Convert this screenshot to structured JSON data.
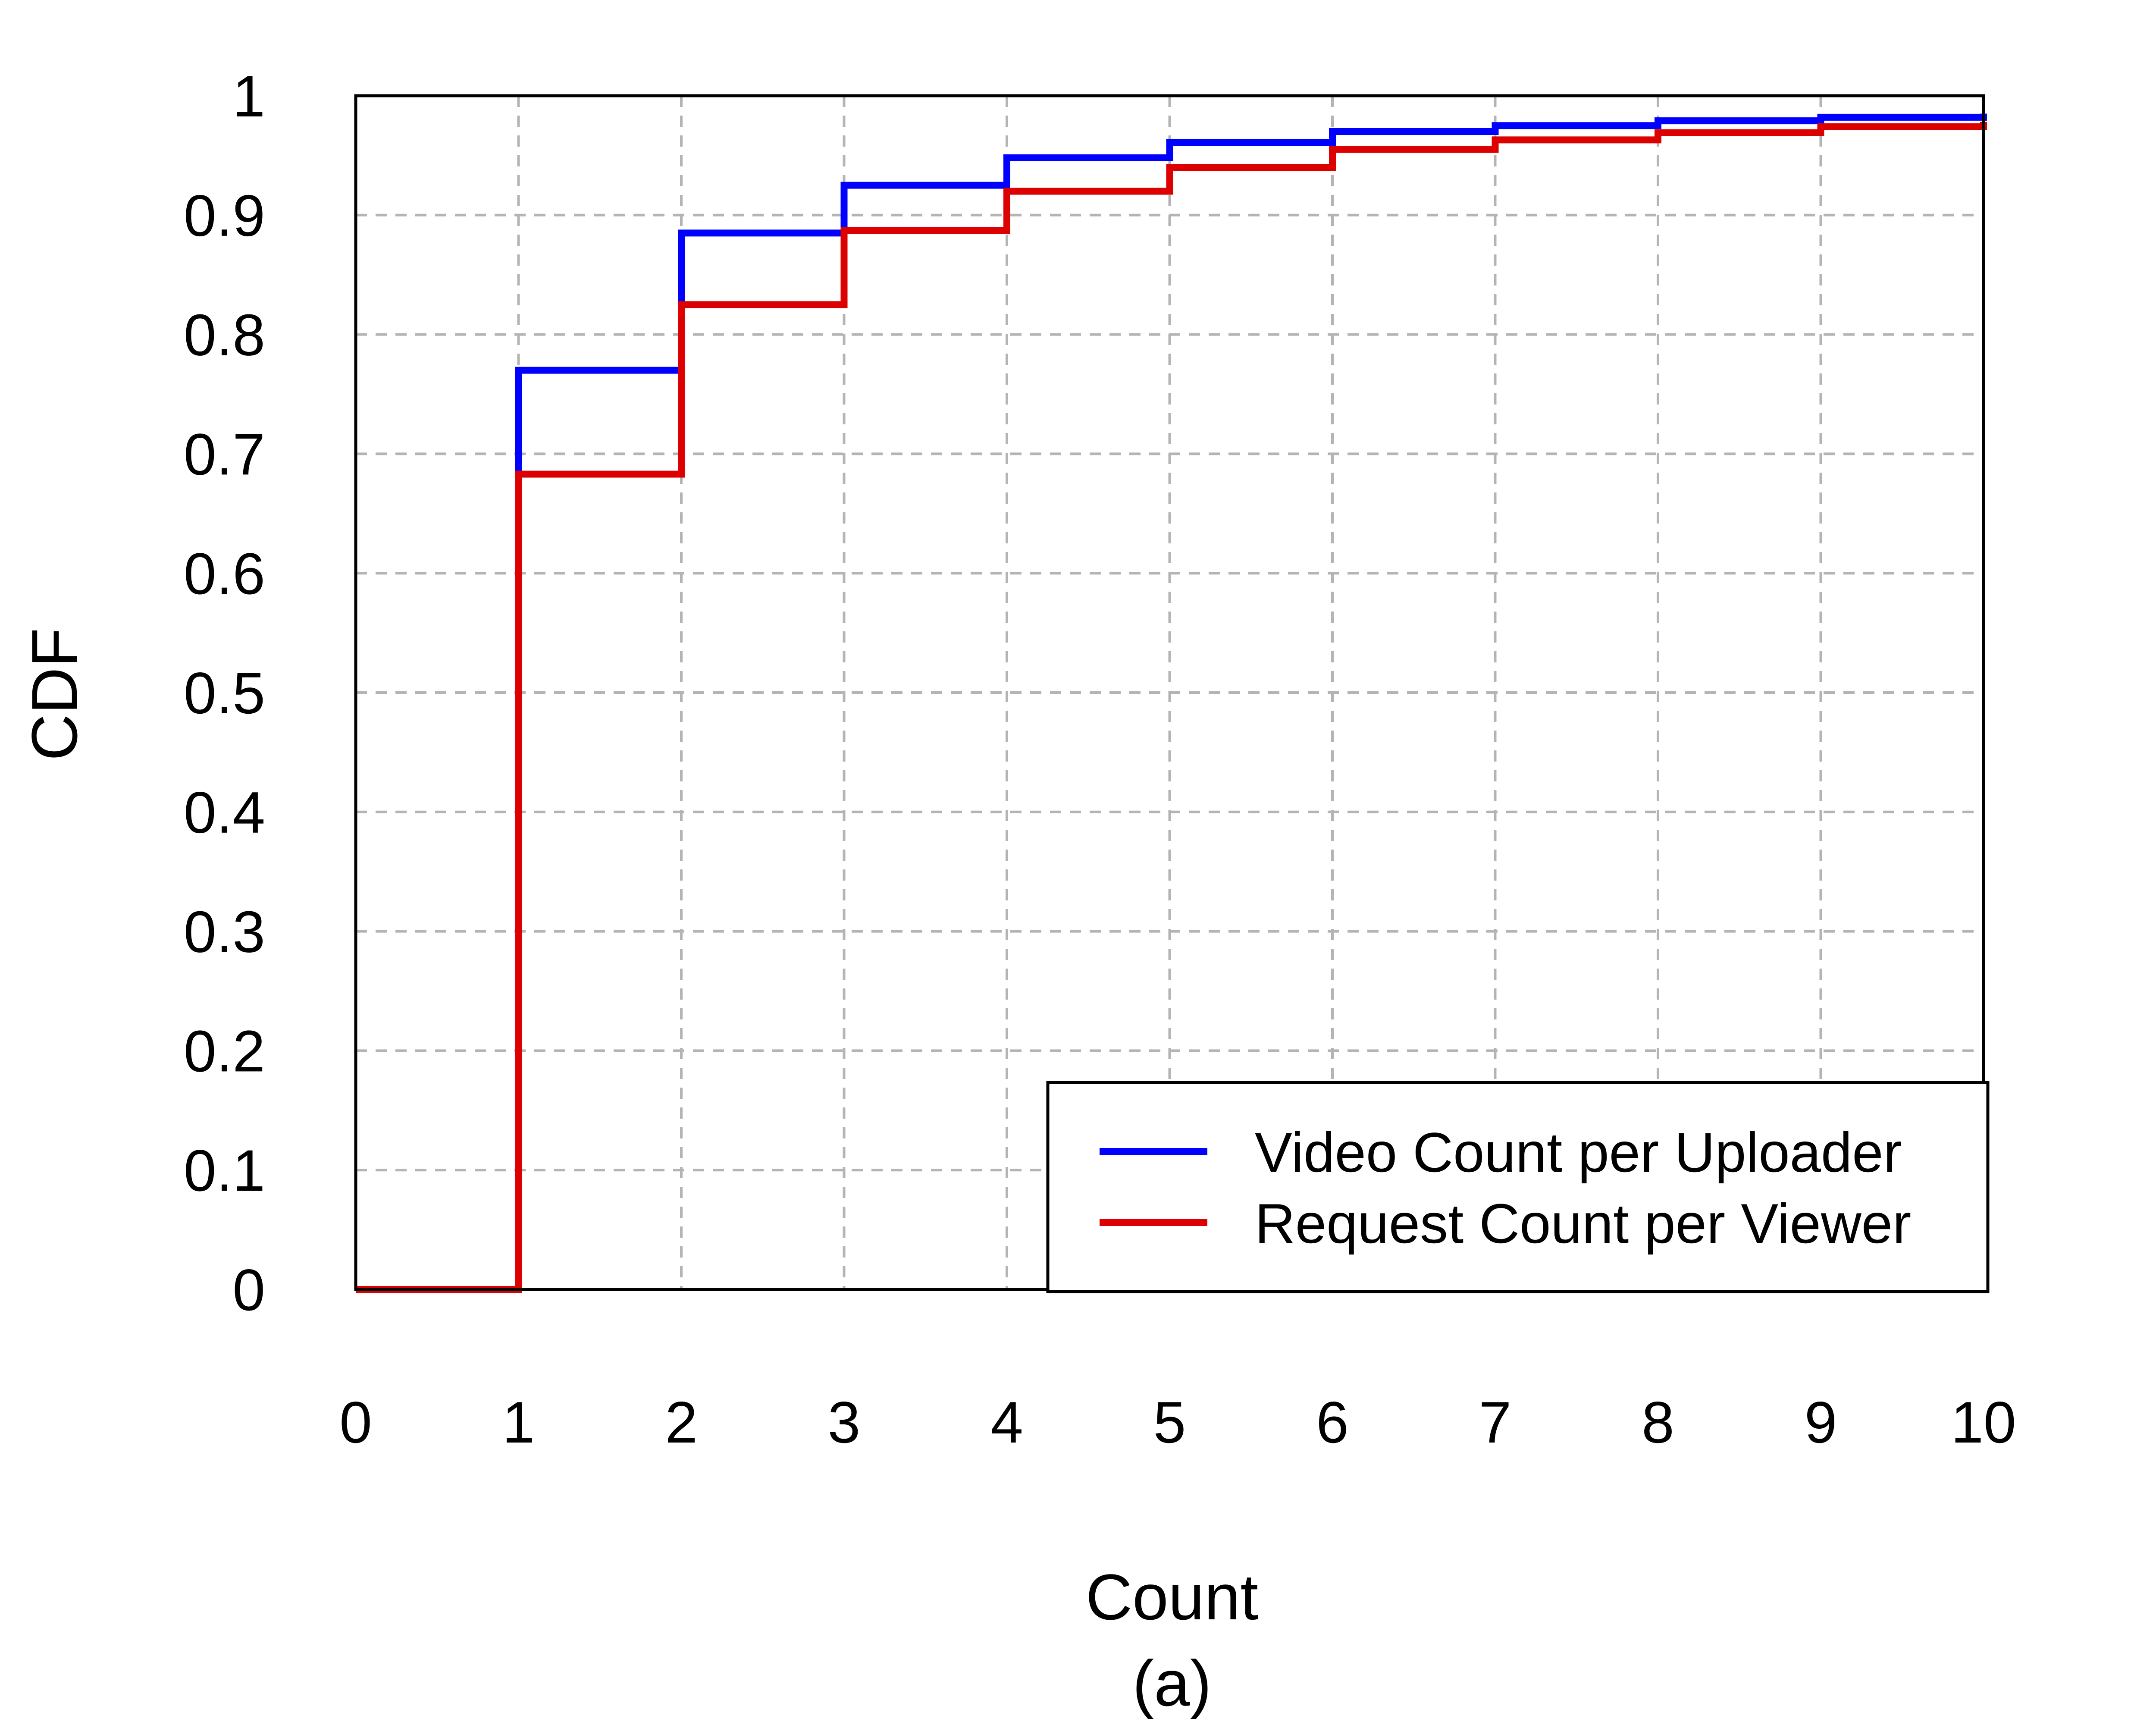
{
  "chart_data": {
    "type": "line",
    "step": true,
    "xlabel": "Count",
    "caption": "(a)",
    "ylabel": "CDF",
    "xlim": [
      0,
      10
    ],
    "ylim": [
      0,
      1
    ],
    "xticks": [
      "0",
      "1",
      "2",
      "3",
      "4",
      "5",
      "6",
      "7",
      "8",
      "9",
      "10"
    ],
    "yticks": [
      "0",
      "0.1",
      "0.2",
      "0.3",
      "0.4",
      "0.5",
      "0.6",
      "0.7",
      "0.8",
      "0.9",
      "1"
    ],
    "grid": true,
    "legend_position": "bottom-right",
    "series": [
      {
        "name": "Video Count per Uploader",
        "color": "#0000ff",
        "x": [
          0,
          1,
          2,
          3,
          4,
          5,
          6,
          7,
          8,
          9,
          10
        ],
        "y": [
          0,
          0.77,
          0.885,
          0.925,
          0.948,
          0.961,
          0.97,
          0.975,
          0.979,
          0.982,
          0.985
        ]
      },
      {
        "name": "Request Count per Viewer",
        "color": "#dd0000",
        "x": [
          0,
          1,
          2,
          3,
          4,
          5,
          6,
          7,
          8,
          9,
          10
        ],
        "y": [
          0,
          0.683,
          0.825,
          0.887,
          0.92,
          0.94,
          0.955,
          0.963,
          0.969,
          0.974,
          0.978
        ]
      }
    ]
  }
}
